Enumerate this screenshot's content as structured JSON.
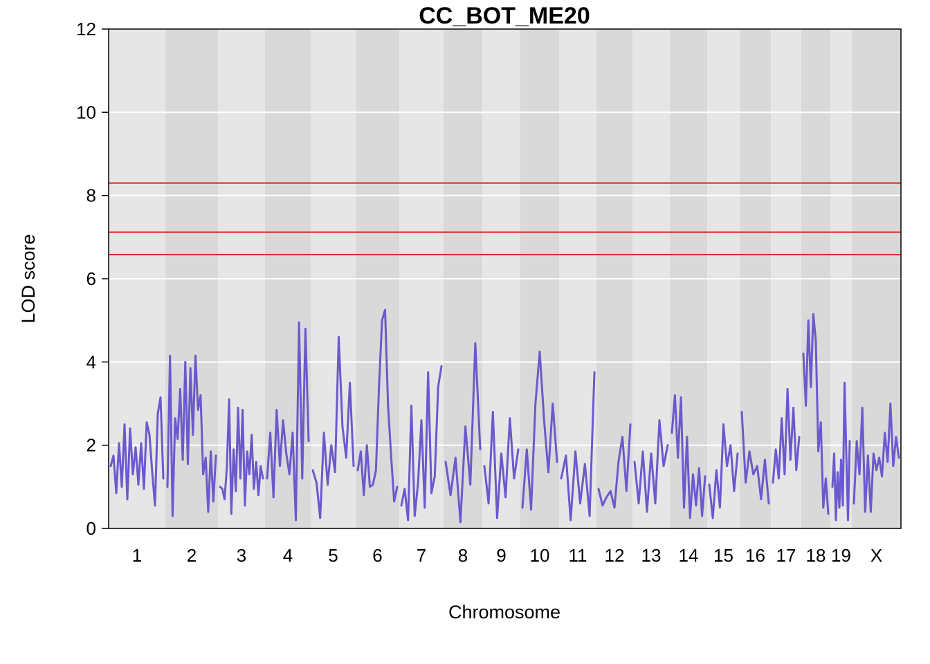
{
  "chart_data": {
    "type": "line",
    "title": "CC_BOT_ME20",
    "xlabel": "Chromosome",
    "ylabel": "LOD score",
    "ylim": [
      0,
      12
    ],
    "yticks": [
      0,
      2,
      4,
      6,
      8,
      10,
      12
    ],
    "grid": true,
    "colors": {
      "series": "#6A5ACD",
      "threshold": "#E0201B",
      "band_light": "#E6E6E6",
      "band_dark": "#D9D9D9",
      "gridline": "#FFFFFF"
    },
    "chromosomes": [
      "1",
      "2",
      "3",
      "4",
      "5",
      "6",
      "7",
      "8",
      "9",
      "10",
      "11",
      "12",
      "13",
      "14",
      "15",
      "16",
      "17",
      "18",
      "19",
      "X"
    ],
    "thresholds": [
      8.3,
      7.12,
      6.58
    ],
    "series": [
      {
        "values": [
          [
            1.5,
            1.75,
            0.85,
            2.05,
            1.0,
            2.5,
            0.7,
            2.4,
            1.3,
            1.95,
            1.05,
            2.05,
            0.95,
            2.55,
            2.25,
            1.35,
            0.55,
            2.75,
            3.15,
            1.2
          ],
          [
            1.0,
            4.15,
            0.3,
            2.65,
            2.15,
            3.35,
            1.65,
            4.0,
            1.55,
            3.85,
            2.25,
            4.15,
            2.85,
            3.2,
            1.3,
            1.7,
            0.4,
            1.85,
            0.65,
            1.75
          ],
          [
            1.0,
            0.95,
            0.7,
            1.45,
            3.1,
            0.35,
            1.9,
            0.9,
            2.9,
            1.2,
            2.85,
            0.55,
            1.85,
            1.3,
            2.25,
            0.95,
            1.6,
            0.8,
            1.5,
            1.2
          ],
          [
            1.2,
            2.3,
            0.75,
            2.85,
            1.5,
            2.6,
            1.8,
            1.3,
            2.3,
            0.2,
            4.95,
            1.2,
            4.8,
            2.1
          ],
          [
            1.4,
            1.1,
            0.25,
            2.3,
            1.05,
            2.0,
            1.35,
            4.6,
            2.45,
            1.7,
            3.5,
            1.5
          ],
          [
            1.4,
            1.85,
            0.8,
            2.0,
            1.0,
            1.05,
            1.4,
            3.4,
            5.0,
            5.25,
            2.95,
            1.75,
            0.65,
            1.0
          ],
          [
            0.55,
            0.95,
            0.2,
            2.95,
            0.3,
            1.1,
            2.6,
            0.5,
            3.75,
            0.85,
            1.25,
            3.4,
            3.9
          ],
          [
            1.6,
            0.8,
            1.7,
            0.15,
            2.45,
            1.05,
            4.45,
            1.9
          ],
          [
            1.5,
            0.6,
            2.8,
            0.25,
            1.8,
            0.75,
            2.65,
            1.2,
            1.9
          ],
          [
            0.5,
            1.9,
            0.45,
            3.0,
            4.25,
            2.6,
            1.35,
            3.0,
            1.6
          ],
          [
            1.2,
            1.75,
            0.2,
            1.85,
            0.6,
            1.55,
            0.3,
            3.75
          ],
          [
            0.95,
            0.55,
            0.75,
            0.9,
            0.5,
            1.6,
            2.2,
            0.9,
            2.5
          ],
          [
            1.6,
            0.6,
            1.85,
            0.4,
            1.8,
            0.6,
            2.6,
            1.5,
            2.0
          ],
          [
            2.3,
            3.2,
            1.7,
            3.15,
            0.5,
            2.2,
            0.25,
            1.3,
            0.55,
            1.45,
            0.3,
            1.25
          ],
          [
            1.05,
            0.25,
            1.4,
            0.5,
            2.5,
            1.5,
            2.0,
            0.9,
            1.8
          ],
          [
            2.8,
            1.1,
            1.85,
            1.3,
            1.5,
            0.7,
            1.65,
            0.6
          ],
          [
            1.1,
            1.9,
            1.2,
            2.65,
            1.3,
            3.35,
            1.65,
            2.9,
            1.4,
            2.2
          ],
          [
            4.2,
            2.95,
            5.0,
            3.4,
            5.15,
            4.5,
            1.85,
            2.55,
            0.5,
            1.2,
            0.35
          ],
          [
            1.0,
            1.8,
            0.2,
            1.35,
            0.5,
            1.65,
            0.55,
            3.5,
            1.8,
            0.2,
            2.1
          ],
          [
            0.6,
            2.1,
            1.3,
            2.9,
            0.4,
            1.75,
            0.4,
            1.8,
            1.4,
            1.7,
            1.25,
            2.3,
            1.6,
            3.0,
            1.5,
            2.2,
            1.7
          ]
        ]
      }
    ]
  }
}
